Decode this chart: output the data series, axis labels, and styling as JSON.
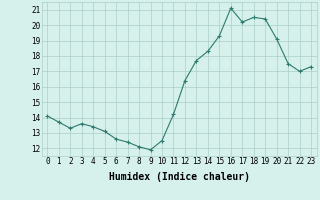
{
  "x": [
    0,
    1,
    2,
    3,
    4,
    5,
    6,
    7,
    8,
    9,
    10,
    11,
    12,
    13,
    14,
    15,
    16,
    17,
    18,
    19,
    20,
    21,
    22,
    23
  ],
  "y": [
    14.1,
    13.7,
    13.3,
    13.6,
    13.4,
    13.1,
    12.6,
    12.4,
    12.1,
    11.9,
    12.5,
    14.2,
    16.4,
    17.7,
    18.3,
    19.3,
    21.1,
    20.2,
    20.5,
    20.4,
    19.1,
    17.5,
    17.0,
    17.3
  ],
  "line_color": "#2d7a6e",
  "marker": "+",
  "marker_color": "#2d7a6e",
  "bg_color": "#d6f0eb",
  "grid_color": "#aacfc8",
  "xlabel": "Humidex (Indice chaleur)",
  "ylabel_ticks": [
    12,
    13,
    14,
    15,
    16,
    17,
    18,
    19,
    20,
    21
  ],
  "xlim": [
    -0.5,
    23.5
  ],
  "ylim": [
    11.5,
    21.5
  ],
  "xticks": [
    0,
    1,
    2,
    3,
    4,
    5,
    6,
    7,
    8,
    9,
    10,
    11,
    12,
    13,
    14,
    15,
    16,
    17,
    18,
    19,
    20,
    21,
    22,
    23
  ],
  "xtick_labels": [
    "0",
    "1",
    "2",
    "3",
    "4",
    "5",
    "6",
    "7",
    "8",
    "9",
    "10",
    "11",
    "12",
    "13",
    "14",
    "15",
    "16",
    "17",
    "18",
    "19",
    "20",
    "21",
    "22",
    "23"
  ],
  "axis_fontsize": 7,
  "tick_fontsize": 5.5
}
